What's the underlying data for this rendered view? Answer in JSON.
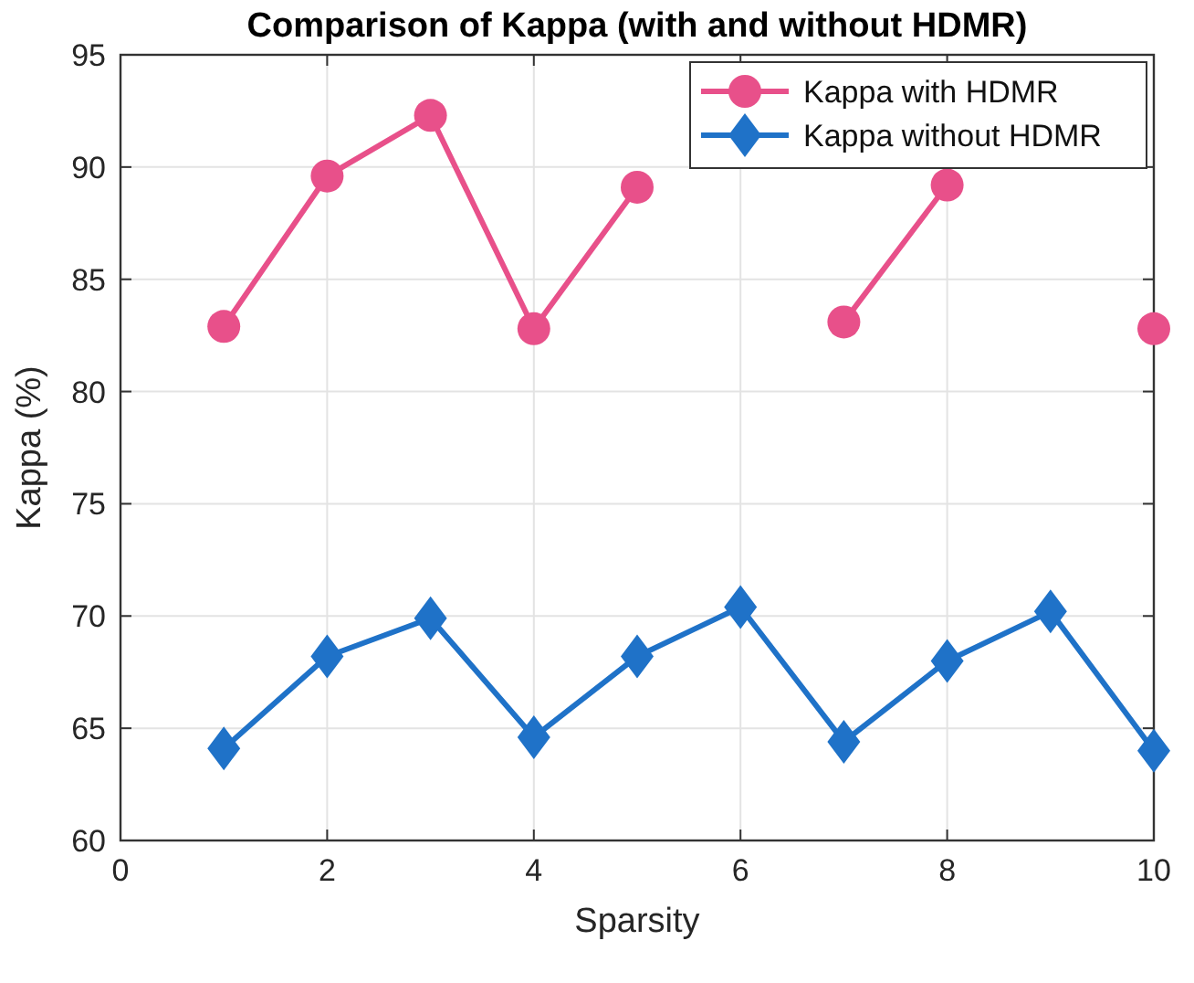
{
  "chart_data": {
    "type": "line",
    "title": "Comparison of Kappa (with and without HDMR)",
    "xlabel": "Sparsity",
    "ylabel": "Kappa (%)",
    "x": [
      1,
      2,
      3,
      4,
      5,
      6,
      7,
      8,
      9,
      10
    ],
    "series": [
      {
        "name": "Kappa with HDMR",
        "color": "#e8508a",
        "marker": "circle",
        "values": [
          82.9,
          89.6,
          92.3,
          82.8,
          89.1,
          null,
          83.1,
          89.2,
          null,
          82.8
        ]
      },
      {
        "name": "Kappa without HDMR",
        "color": "#1f72c8",
        "marker": "diamond",
        "values": [
          64.1,
          68.2,
          69.9,
          64.6,
          68.2,
          70.4,
          64.4,
          68.0,
          70.2,
          64.0
        ]
      }
    ],
    "xlim": [
      0,
      10
    ],
    "xticks": [
      0,
      2,
      4,
      6,
      8,
      10
    ],
    "ylim": [
      60,
      95
    ],
    "yticks": [
      60,
      65,
      70,
      75,
      80,
      85,
      90,
      95
    ],
    "grid": true,
    "legend": "top right",
    "line_style": "solid"
  }
}
